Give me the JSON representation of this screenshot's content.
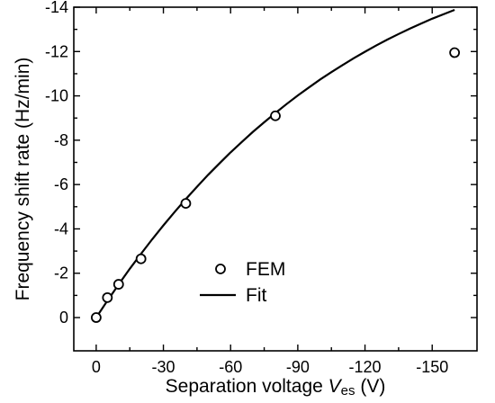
{
  "chart_data": {
    "type": "scatter",
    "xlabel": "Separation voltage ",
    "xlabel_var": "V",
    "xlabel_sub": "es",
    "xlabel_unit": " (V)",
    "ylabel": "Frequency shift rate (Hz/min)",
    "xlim": [
      10,
      -170
    ],
    "ylim": [
      1.5,
      -14
    ],
    "x_ticks": [
      0,
      -30,
      -60,
      -90,
      -120,
      -150
    ],
    "x_tick_labels": [
      "0",
      "-30",
      "-60",
      "-90",
      "-120",
      "-150"
    ],
    "y_ticks": [
      0,
      -2,
      -4,
      -6,
      -8,
      -10,
      -12,
      -14
    ],
    "y_tick_labels": [
      "0",
      "-2",
      "-4",
      "-6",
      "-8",
      "-10",
      "-12",
      "-14"
    ],
    "legend_position": "bottom-center",
    "series": [
      {
        "name": "FEM",
        "kind": "markers",
        "marker": "open-circle",
        "x": [
          0,
          -5,
          -10,
          -20,
          -40,
          -80,
          -160
        ],
        "y": [
          0,
          -0.9,
          -1.5,
          -2.65,
          -5.15,
          -9.1,
          -11.95
        ]
      },
      {
        "name": "Fit",
        "kind": "line",
        "x": [
          0,
          -5,
          -10,
          -15,
          -20,
          -25,
          -30,
          -35,
          -40,
          -45,
          -50,
          -55,
          -60,
          -65,
          -70,
          -75,
          -80,
          -85,
          -90,
          -95,
          -100,
          -105,
          -110,
          -115,
          -120,
          -125,
          -130,
          -135,
          -140,
          -145,
          -150,
          -155,
          -160
        ],
        "y": [
          0,
          -0.76,
          -1.49,
          -2.2,
          -2.88,
          -3.53,
          -4.16,
          -4.76,
          -5.34,
          -5.9,
          -6.44,
          -6.95,
          -7.45,
          -7.92,
          -8.38,
          -8.81,
          -9.23,
          -9.63,
          -10.02,
          -10.38,
          -10.74,
          -11.07,
          -11.39,
          -11.7,
          -11.99,
          -12.27,
          -12.54,
          -12.79,
          -13.03,
          -13.26,
          -13.48,
          -13.68,
          -13.88
        ]
      }
    ]
  }
}
